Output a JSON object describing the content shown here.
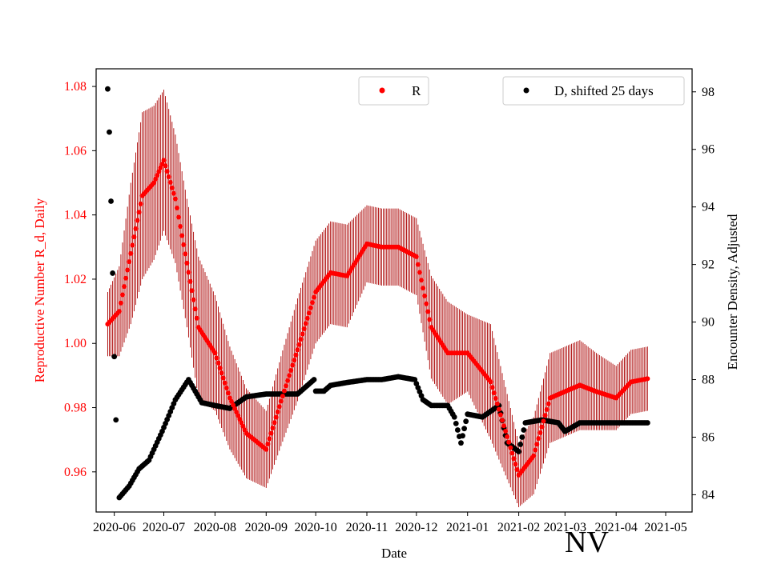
{
  "chart_data": {
    "type": "scatter",
    "xlabel": "Date",
    "ylabel_left": "Reproductive Number R_d, Daily",
    "ylabel_right": "Encounter Density, Adjusted",
    "annotation": "NV",
    "x_tick_labels": [
      "2020-06",
      "2020-07",
      "2020-08",
      "2020-09",
      "2020-10",
      "2020-11",
      "2020-12",
      "2021-01",
      "2021-02",
      "2021-03",
      "2021-04",
      "2021-05"
    ],
    "y_left_ticks": [
      "0.96",
      "0.98",
      "1.00",
      "1.02",
      "1.04",
      "1.06",
      "1.08"
    ],
    "y_right_ticks": [
      "84",
      "86",
      "88",
      "90",
      "92",
      "94",
      "96",
      "98"
    ],
    "y_left_lim": [
      0.9475,
      1.0855
    ],
    "y_right_lim": [
      83.4,
      98.8
    ],
    "x_start": "2020-05-01",
    "x_lim_days": [
      20,
      381
    ],
    "colors": {
      "r_series": "#ff0000",
      "r_error": "#aa0000",
      "d_series": "#000000",
      "left_axis_text": "#ff0000"
    },
    "legend": {
      "r_label": "R",
      "d_label": "D, shifted 25 days"
    },
    "series_R": {
      "name": "R",
      "dates": [
        "2020-05-28",
        "2020-06-04",
        "2020-06-11",
        "2020-06-18",
        "2020-06-25",
        "2020-07-01",
        "2020-07-08",
        "2020-07-15",
        "2020-07-22",
        "2020-08-01",
        "2020-08-10",
        "2020-08-20",
        "2020-09-01",
        "2020-09-10",
        "2020-09-20",
        "2020-10-01",
        "2020-10-10",
        "2020-10-20",
        "2020-11-01",
        "2020-11-10",
        "2020-11-20",
        "2020-12-01",
        "2020-12-10",
        "2020-12-20",
        "2021-01-01",
        "2021-01-15",
        "2021-02-01",
        "2021-02-10",
        "2021-02-20",
        "2021-03-01",
        "2021-03-10",
        "2021-03-20",
        "2021-04-01",
        "2021-04-10",
        "2021-04-20"
      ],
      "values": [
        1.006,
        1.01,
        1.028,
        1.046,
        1.05,
        1.057,
        1.045,
        1.025,
        1.005,
        0.997,
        0.983,
        0.972,
        0.967,
        0.982,
        0.998,
        1.016,
        1.022,
        1.021,
        1.031,
        1.03,
        1.03,
        1.027,
        1.005,
        0.997,
        0.997,
        0.988,
        0.959,
        0.965,
        0.983,
        0.985,
        0.987,
        0.985,
        0.983,
        0.988,
        0.989
      ],
      "err": [
        0.01,
        0.014,
        0.022,
        0.026,
        0.024,
        0.022,
        0.02,
        0.02,
        0.022,
        0.018,
        0.016,
        0.014,
        0.012,
        0.014,
        0.016,
        0.016,
        0.016,
        0.016,
        0.012,
        0.012,
        0.012,
        0.012,
        0.016,
        0.016,
        0.012,
        0.018,
        0.01,
        0.012,
        0.014,
        0.014,
        0.014,
        0.012,
        0.01,
        0.01,
        0.01
      ]
    },
    "series_D": {
      "name": "D, shifted 25 days",
      "dates": [
        "2020-05-28",
        "2020-05-29",
        "2020-05-30",
        "2020-05-31",
        "2020-06-01",
        "2020-06-02",
        "2020-06-04",
        "2020-06-10",
        "2020-06-16",
        "2020-06-22",
        "2020-06-30",
        "2020-07-08",
        "2020-07-16",
        "2020-07-24",
        "2020-08-01",
        "2020-08-10",
        "2020-08-20",
        "2020-09-01",
        "2020-09-10",
        "2020-09-20",
        "2020-09-30",
        "2020-10-01",
        "2020-10-06",
        "2020-10-10",
        "2020-10-20",
        "2020-11-01",
        "2020-11-10",
        "2020-11-20",
        "2020-11-30",
        "2020-12-05",
        "2020-12-10",
        "2020-12-20",
        "2020-12-24",
        "2020-12-28",
        "2021-01-01",
        "2021-01-10",
        "2021-01-20",
        "2021-01-25",
        "2021-02-01",
        "2021-02-05",
        "2021-02-15",
        "2021-02-25",
        "2021-03-01",
        "2021-03-10",
        "2021-03-20",
        "2021-04-01",
        "2021-04-20"
      ],
      "values": [
        98.1,
        96.6,
        94.2,
        91.7,
        88.8,
        86.6,
        83.9,
        84.3,
        84.9,
        85.2,
        86.2,
        87.3,
        88.0,
        87.2,
        87.1,
        87.0,
        87.4,
        87.5,
        87.5,
        87.5,
        88.0,
        87.6,
        87.6,
        87.8,
        87.9,
        88.0,
        88.0,
        88.1,
        88.0,
        87.3,
        87.1,
        87.1,
        86.7,
        85.8,
        86.8,
        86.7,
        87.1,
        85.8,
        85.5,
        86.5,
        86.6,
        86.5,
        86.2,
        86.5,
        86.5,
        86.5,
        86.5
      ]
    }
  }
}
